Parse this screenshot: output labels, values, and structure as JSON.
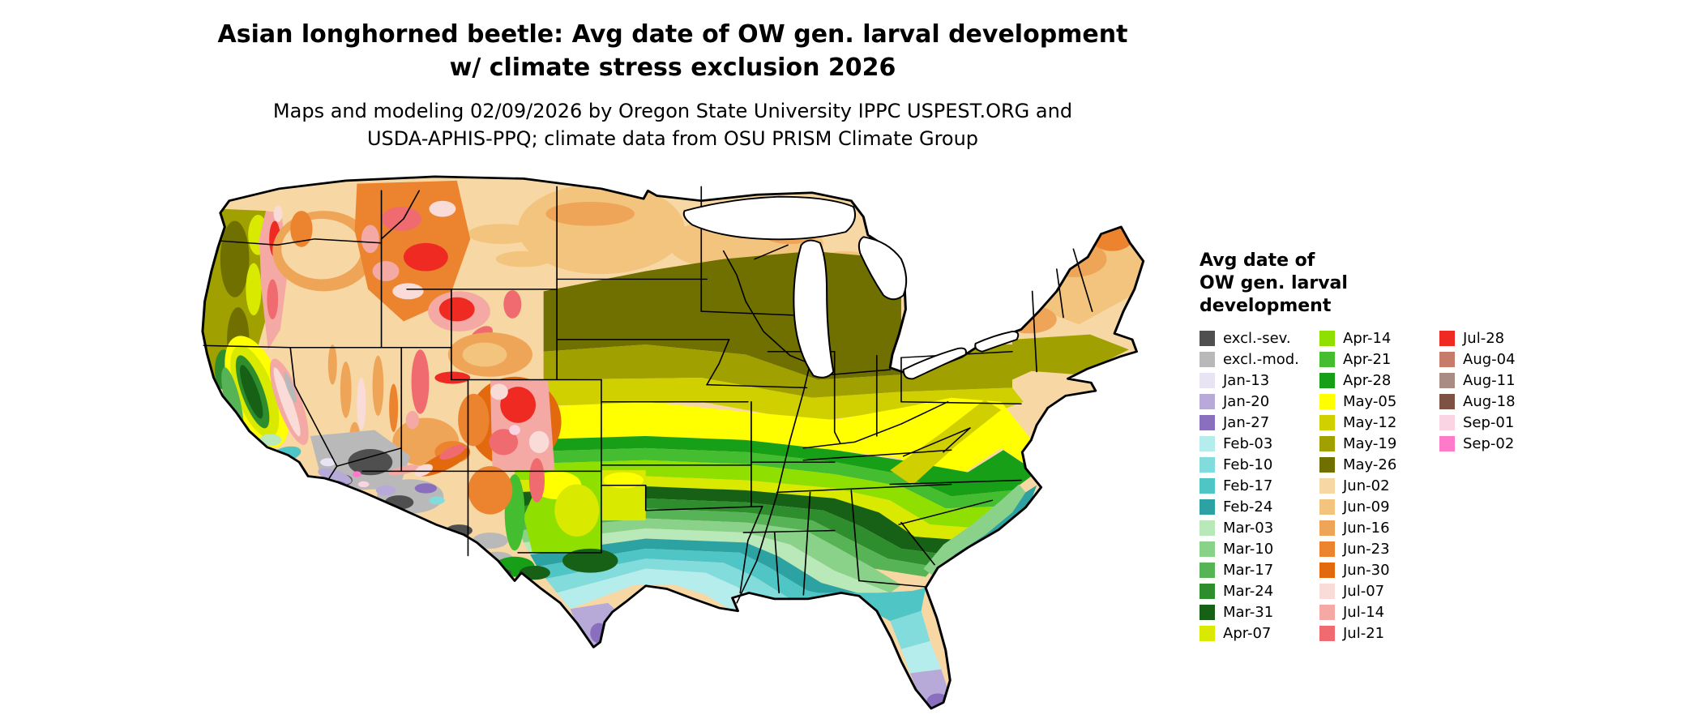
{
  "title": {
    "line1": "Asian longhorned beetle: Avg date of OW gen. larval development",
    "line2": "w/ climate stress exclusion 2026"
  },
  "subtitle": {
    "line1": "Maps and modeling 02/09/2026 by Oregon State University IPPC USPEST.ORG and",
    "line2": "USDA-APHIS-PPQ; climate data from OSU PRISM Climate Group"
  },
  "legend": {
    "title_lines": [
      "Avg date of",
      "OW gen. larval",
      "development"
    ],
    "columns": [
      [
        {
          "label": "excl.-sev.",
          "color_key": "excl_sev"
        },
        {
          "label": "excl.-mod.",
          "color_key": "excl_mod"
        },
        {
          "label": "Jan-13",
          "color_key": "jan13"
        },
        {
          "label": "Jan-20",
          "color_key": "jan20"
        },
        {
          "label": "Jan-27",
          "color_key": "jan27"
        },
        {
          "label": "Feb-03",
          "color_key": "feb03"
        },
        {
          "label": "Feb-10",
          "color_key": "feb10"
        },
        {
          "label": "Feb-17",
          "color_key": "feb17"
        },
        {
          "label": "Feb-24",
          "color_key": "feb24"
        },
        {
          "label": "Mar-03",
          "color_key": "mar03"
        },
        {
          "label": "Mar-10",
          "color_key": "mar10"
        },
        {
          "label": "Mar-17",
          "color_key": "mar17"
        },
        {
          "label": "Mar-24",
          "color_key": "mar24"
        },
        {
          "label": "Mar-31",
          "color_key": "mar31"
        },
        {
          "label": "Apr-07",
          "color_key": "apr07"
        }
      ],
      [
        {
          "label": "Apr-14",
          "color_key": "apr14"
        },
        {
          "label": "Apr-21",
          "color_key": "apr21"
        },
        {
          "label": "Apr-28",
          "color_key": "apr28"
        },
        {
          "label": "May-05",
          "color_key": "may05"
        },
        {
          "label": "May-12",
          "color_key": "may12"
        },
        {
          "label": "May-19",
          "color_key": "may19"
        },
        {
          "label": "May-26",
          "color_key": "may26"
        },
        {
          "label": "Jun-02",
          "color_key": "jun02"
        },
        {
          "label": "Jun-09",
          "color_key": "jun09"
        },
        {
          "label": "Jun-16",
          "color_key": "jun16"
        },
        {
          "label": "Jun-23",
          "color_key": "jun23"
        },
        {
          "label": "Jun-30",
          "color_key": "jun30"
        },
        {
          "label": "Jul-07",
          "color_key": "jul07"
        },
        {
          "label": "Jul-14",
          "color_key": "jul14"
        },
        {
          "label": "Jul-21",
          "color_key": "jul21"
        }
      ],
      [
        {
          "label": "Jul-28",
          "color_key": "jul28"
        },
        {
          "label": "Aug-04",
          "color_key": "aug04"
        },
        {
          "label": "Aug-11",
          "color_key": "aug11"
        },
        {
          "label": "Aug-18",
          "color_key": "aug18"
        },
        {
          "label": "Sep-01",
          "color_key": "sep01"
        },
        {
          "label": "Sep-02",
          "color_key": "sep02"
        }
      ]
    ]
  },
  "palette": {
    "excl_sev": "#4f4f4f",
    "excl_mod": "#b9b9b9",
    "jan13": "#e9e4f4",
    "jan20": "#b7a9d8",
    "jan27": "#8a6fbe",
    "feb03": "#b5ecec",
    "feb10": "#82dcdc",
    "feb17": "#50c5c5",
    "feb24": "#2da2a2",
    "mar03": "#b9e8b9",
    "mar10": "#8ad28a",
    "mar17": "#56b356",
    "mar24": "#2e8e2e",
    "mar31": "#176117",
    "apr07": "#d9e900",
    "apr14": "#8fe000",
    "apr21": "#45bd30",
    "apr28": "#17a017",
    "may05": "#ffff00",
    "may12": "#d0d000",
    "may19": "#a0a000",
    "may26": "#707000",
    "jun02": "#f7d8a4",
    "jun09": "#f3c47e",
    "jun16": "#efa557",
    "jun23": "#ec832e",
    "jun30": "#e2690e",
    "jul07": "#f9dcd8",
    "jul14": "#f4a9a5",
    "jul21": "#ef6b6f",
    "jul28": "#ee2a22",
    "aug04": "#c67b6b",
    "aug11": "#a98c83",
    "aug18": "#7d5245",
    "sep01": "#fbd4e4",
    "sep02": "#ff7ac9"
  }
}
